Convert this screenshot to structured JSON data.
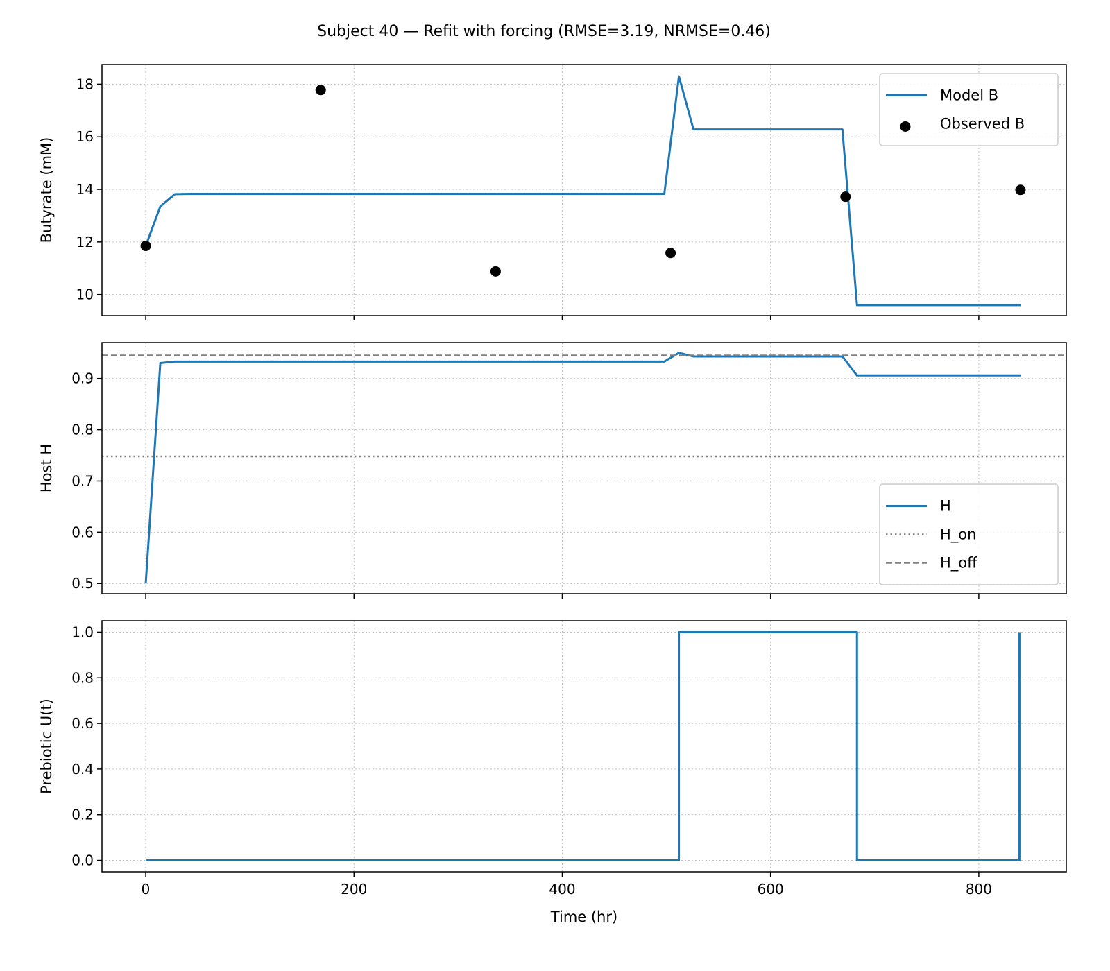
{
  "title": "Subject 40 — Refit with forcing (RMSE=3.19, NRMSE=0.46)",
  "chart_data": [
    {
      "type": "line",
      "id": "butyrate",
      "ylabel": "Butyrate (mM)",
      "xlabel": "",
      "xlim": [
        -42,
        884
      ],
      "ylim": [
        9.2,
        18.75
      ],
      "yticks": [
        10,
        12,
        14,
        16,
        18
      ],
      "ytick_labels": [
        "10",
        "12",
        "14",
        "16",
        "18"
      ],
      "xticks": [
        0,
        200,
        400,
        600,
        800
      ],
      "xtick_labels": [],
      "grid": true,
      "legend": "top-right",
      "series": [
        {
          "name": "Model B",
          "kind": "line",
          "color": "#1f77b4",
          "x": [
            0,
            14,
            28,
            42,
            100,
            200,
            300,
            400,
            498,
            512,
            526,
            540,
            600,
            669,
            683,
            697,
            800,
            840
          ],
          "y": [
            11.85,
            13.35,
            13.82,
            13.83,
            13.83,
            13.83,
            13.83,
            13.83,
            13.83,
            18.3,
            16.28,
            16.28,
            16.28,
            16.28,
            9.6,
            9.6,
            9.6,
            9.6
          ]
        },
        {
          "name": "Observed B",
          "kind": "scatter",
          "color": "#000000",
          "x": [
            0,
            168,
            336,
            504,
            672,
            840
          ],
          "y": [
            11.85,
            17.78,
            10.88,
            11.58,
            13.72,
            13.98
          ]
        }
      ]
    },
    {
      "type": "line",
      "id": "host",
      "ylabel": "Host H",
      "xlabel": "",
      "xlim": [
        -42,
        884
      ],
      "ylim": [
        0.48,
        0.97
      ],
      "yticks": [
        0.5,
        0.6,
        0.7,
        0.8,
        0.9
      ],
      "ytick_labels": [
        "0.5",
        "0.6",
        "0.7",
        "0.8",
        "0.9"
      ],
      "xticks": [
        0,
        200,
        400,
        600,
        800
      ],
      "xtick_labels": [],
      "grid": true,
      "legend": "bottom-right",
      "series": [
        {
          "name": "H",
          "kind": "line",
          "color": "#1f77b4",
          "x": [
            0,
            14,
            28,
            100,
            200,
            300,
            400,
            498,
            512,
            526,
            600,
            669,
            683,
            697,
            800,
            840
          ],
          "y": [
            0.5,
            0.93,
            0.933,
            0.933,
            0.933,
            0.933,
            0.933,
            0.933,
            0.95,
            0.943,
            0.943,
            0.943,
            0.906,
            0.906,
            0.906,
            0.906
          ]
        },
        {
          "name": "H_on",
          "kind": "hline",
          "style": "dotted",
          "color": "#808080",
          "y": 0.748
        },
        {
          "name": "H_off",
          "kind": "hline",
          "style": "dashed",
          "color": "#808080",
          "y": 0.945
        }
      ]
    },
    {
      "type": "line",
      "id": "prebiotic",
      "ylabel": "Prebiotic U(t)",
      "xlabel": "Time (hr)",
      "xlim": [
        -42,
        884
      ],
      "ylim": [
        -0.05,
        1.05
      ],
      "yticks": [
        0.0,
        0.2,
        0.4,
        0.6,
        0.8,
        1.0
      ],
      "ytick_labels": [
        "0.0",
        "0.2",
        "0.4",
        "0.6",
        "0.8",
        "1.0"
      ],
      "xticks": [
        0,
        200,
        400,
        600,
        800
      ],
      "xtick_labels": [
        "0",
        "200",
        "400",
        "600",
        "800"
      ],
      "grid": true,
      "series": [
        {
          "name": "",
          "kind": "line",
          "color": "#1f77b4",
          "x": [
            0,
            512,
            512,
            683,
            683,
            839,
            839
          ],
          "y": [
            0,
            0,
            1,
            1,
            0,
            0,
            1
          ]
        }
      ]
    }
  ]
}
